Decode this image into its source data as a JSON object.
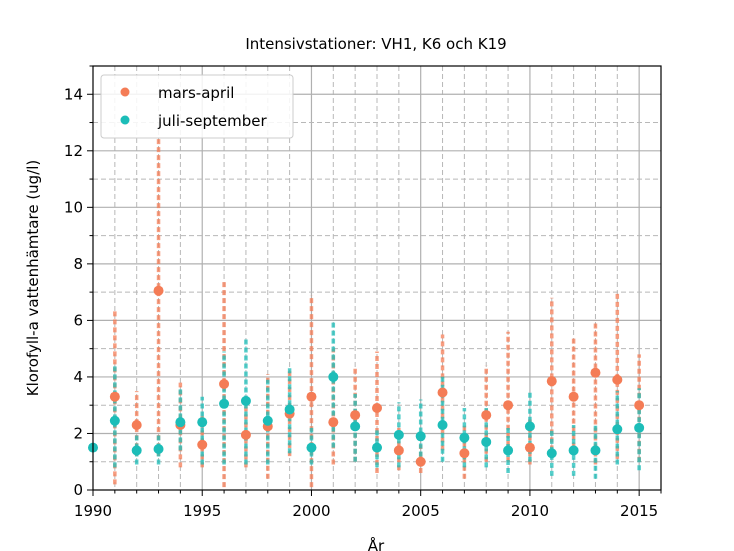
{
  "chart_data": {
    "type": "scatter",
    "title": "Intensivstationer: VH1, K6 och K19",
    "xlabel": "År",
    "ylabel": "Klorofyll-a vattenhämtare (ug/l)",
    "xlim": [
      1990,
      2016
    ],
    "ylim": [
      0,
      15
    ],
    "xticks": [
      1990,
      1995,
      2000,
      2005,
      2010,
      2015
    ],
    "xtick_labels": [
      "1990",
      "1995",
      "2000",
      "2005",
      "2010",
      "2015"
    ],
    "yticks": [
      0,
      2,
      4,
      6,
      8,
      10,
      12,
      14
    ],
    "ytick_labels": [
      "0",
      "2",
      "4",
      "6",
      "8",
      "10",
      "12",
      "14"
    ],
    "grid": true,
    "legend_position": "upper-left",
    "series": [
      {
        "name": "mars-april",
        "color": "#f47c56",
        "x": [
          1991,
          1992,
          1993,
          1994,
          1995,
          1996,
          1997,
          1998,
          1999,
          2000,
          2001,
          2002,
          2003,
          2004,
          2005,
          2006,
          2007,
          2008,
          2009,
          2010,
          2011,
          2012,
          2013,
          2014,
          2015
        ],
        "y": [
          3.3,
          2.3,
          7.05,
          2.3,
          1.6,
          3.75,
          1.95,
          2.25,
          2.7,
          3.3,
          2.4,
          2.65,
          2.9,
          1.4,
          1.0,
          3.45,
          1.3,
          2.65,
          3.0,
          1.5,
          3.85,
          3.3,
          4.15,
          3.9,
          3.0
        ],
        "err_low": [
          0.2,
          1.2,
          1.2,
          0.8,
          0.8,
          0.1,
          0.8,
          0.4,
          1.2,
          0.1,
          0.9,
          1.0,
          0.6,
          0.7,
          0.6,
          1.4,
          0.4,
          1.0,
          1.0,
          0.9,
          1.4,
          1.5,
          0.9,
          1.1,
          1.0
        ],
        "err_high": [
          6.4,
          3.5,
          12.5,
          3.8,
          2.6,
          7.4,
          3.2,
          4.1,
          4.2,
          6.9,
          5.0,
          4.3,
          4.9,
          2.2,
          1.6,
          5.5,
          2.3,
          4.4,
          5.6,
          2.6,
          6.8,
          5.4,
          6.0,
          7.0,
          4.8
        ]
      },
      {
        "name": "juli-september",
        "color": "#1cbdb8",
        "x": [
          1990,
          1991,
          1992,
          1993,
          1994,
          1995,
          1996,
          1997,
          1998,
          1999,
          2000,
          2001,
          2002,
          2003,
          2004,
          2005,
          2006,
          2007,
          2008,
          2009,
          2010,
          2011,
          2012,
          2013,
          2014,
          2015
        ],
        "y": [
          1.5,
          2.45,
          1.4,
          1.45,
          2.4,
          2.4,
          3.05,
          3.15,
          2.45,
          2.85,
          1.5,
          4.0,
          2.25,
          1.5,
          1.95,
          1.9,
          2.3,
          1.85,
          1.7,
          1.4,
          2.25,
          1.3,
          1.4,
          1.4,
          2.15,
          2.2
        ],
        "err_low": [
          1.5,
          0.8,
          0.9,
          0.9,
          1.4,
          0.9,
          0.9,
          0.9,
          0.9,
          1.3,
          0.9,
          1.5,
          1.0,
          0.8,
          0.8,
          0.9,
          1.0,
          0.8,
          0.8,
          0.6,
          1.0,
          0.5,
          0.5,
          0.4,
          0.9,
          0.7
        ],
        "err_high": [
          1.5,
          4.4,
          2.0,
          2.0,
          3.6,
          3.3,
          4.9,
          5.4,
          3.9,
          4.4,
          2.2,
          6.0,
          3.4,
          2.2,
          3.1,
          3.2,
          4.1,
          2.9,
          2.9,
          2.3,
          3.5,
          2.2,
          2.3,
          2.3,
          3.5,
          3.6
        ]
      }
    ]
  }
}
